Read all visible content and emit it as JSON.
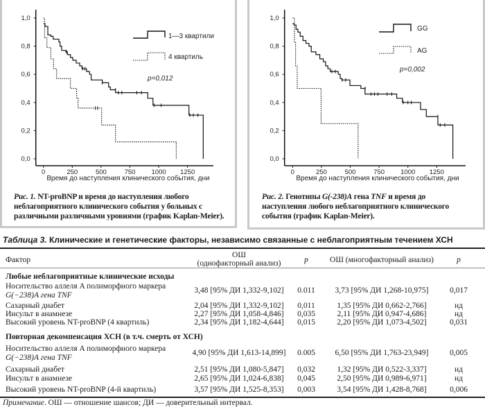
{
  "chart_data": [
    {
      "type": "line",
      "subtype": "kaplan-meier",
      "xlabel": "Время до наступления клинического события, дни",
      "xticks": [
        "0",
        "250",
        "500",
        "750",
        "1000",
        "1250"
      ],
      "xtick_values": [
        0,
        250,
        500,
        750,
        1000,
        1250
      ],
      "yticks": [
        "0,0",
        "0,2",
        "0,4",
        "0,6",
        "0,8",
        "1,0"
      ],
      "ytick_values": [
        0,
        0.2,
        0.4,
        0.6,
        0.8,
        1.0
      ],
      "xlim": [
        0,
        1450
      ],
      "ylim": [
        0,
        1.0
      ],
      "grid": false,
      "legend_position": "top-right",
      "annotation": "p=0,012",
      "series": [
        {
          "name": "1—3 квартили",
          "style": "solid",
          "start": 0.96,
          "steps": [
            [
              14,
              0.94
            ],
            [
              38,
              0.88
            ],
            [
              64,
              0.87
            ],
            [
              84,
              0.85
            ],
            [
              134,
              0.83
            ],
            [
              144,
              0.8
            ],
            [
              158,
              0.77
            ],
            [
              194,
              0.76
            ],
            [
              208,
              0.74
            ],
            [
              234,
              0.72
            ],
            [
              254,
              0.7
            ],
            [
              284,
              0.68
            ],
            [
              314,
              0.66
            ],
            [
              334,
              0.64
            ],
            [
              374,
              0.62
            ],
            [
              400,
              0.6
            ],
            [
              414,
              0.56
            ],
            [
              510,
              0.54
            ],
            [
              565,
              0.51
            ],
            [
              580,
              0.49
            ],
            [
              625,
              0.47
            ],
            [
              905,
              0.43
            ],
            [
              950,
              0.38
            ],
            [
              1262,
              0.31
            ],
            [
              1386,
              0.0
            ]
          ],
          "censored": [
            [
              200,
              0.76
            ],
            [
              340,
              0.64
            ],
            [
              360,
              0.64
            ],
            [
              510,
              0.54
            ],
            [
              625,
              0.49
            ],
            [
              650,
              0.47
            ],
            [
              680,
              0.47
            ],
            [
              810,
              0.47
            ],
            [
              850,
              0.47
            ],
            [
              960,
              0.38
            ],
            [
              1020,
              0.38
            ],
            [
              1270,
              0.31
            ],
            [
              1300,
              0.31
            ],
            [
              1340,
              0.31
            ]
          ]
        },
        {
          "name": "4 квартиль",
          "style": "dotted",
          "start": 1.0,
          "steps": [
            [
              10,
              0.86
            ],
            [
              30,
              0.79
            ],
            [
              64,
              0.71
            ],
            [
              88,
              0.64
            ],
            [
              114,
              0.57
            ],
            [
              234,
              0.5
            ],
            [
              288,
              0.43
            ],
            [
              300,
              0.36
            ],
            [
              505,
              0.24
            ],
            [
              625,
              0.12
            ],
            [
              1152,
              0.0
            ]
          ],
          "censored": [
            [
              450,
              0.36
            ],
            [
              470,
              0.36
            ]
          ]
        }
      ]
    },
    {
      "type": "line",
      "subtype": "kaplan-meier",
      "xlabel": "Время до наступления клинического события, дни",
      "xticks": [
        "0",
        "250",
        "500",
        "750",
        "1000",
        "1250"
      ],
      "xtick_values": [
        0,
        250,
        500,
        750,
        1000,
        1250
      ],
      "yticks": [
        "0,0",
        "0,2",
        "0,4",
        "0,6",
        "0,8",
        "1,0"
      ],
      "ytick_values": [
        0,
        0.2,
        0.4,
        0.6,
        0.8,
        1.0
      ],
      "xlim": [
        0,
        1450
      ],
      "ylim": [
        0,
        1.0
      ],
      "grid": false,
      "legend_position": "top-right",
      "annotation": "p=0,002",
      "series": [
        {
          "name": "GG",
          "style": "solid",
          "start": 0.96,
          "steps": [
            [
              12,
              0.95
            ],
            [
              30,
              0.92
            ],
            [
              46,
              0.9
            ],
            [
              66,
              0.87
            ],
            [
              90,
              0.84
            ],
            [
              116,
              0.82
            ],
            [
              142,
              0.8
            ],
            [
              162,
              0.76
            ],
            [
              202,
              0.74
            ],
            [
              236,
              0.71
            ],
            [
              266,
              0.69
            ],
            [
              286,
              0.66
            ],
            [
              306,
              0.64
            ],
            [
              326,
              0.62
            ],
            [
              396,
              0.6
            ],
            [
              413,
              0.57
            ],
            [
              427,
              0.56
            ],
            [
              497,
              0.52
            ],
            [
              592,
              0.5
            ],
            [
              628,
              0.46
            ],
            [
              903,
              0.43
            ],
            [
              953,
              0.4
            ],
            [
              1110,
              0.35
            ],
            [
              1160,
              0.3
            ],
            [
              1260,
              0.24
            ],
            [
              1390,
              0.0
            ]
          ],
          "censored": [
            [
              340,
              0.62
            ],
            [
              370,
              0.62
            ],
            [
              430,
              0.56
            ],
            [
              460,
              0.56
            ],
            [
              630,
              0.5
            ],
            [
              680,
              0.46
            ],
            [
              710,
              0.46
            ],
            [
              740,
              0.46
            ],
            [
              820,
              0.46
            ],
            [
              860,
              0.46
            ],
            [
              960,
              0.4
            ],
            [
              1000,
              0.4
            ],
            [
              1030,
              0.4
            ],
            [
              1260,
              0.3
            ],
            [
              1280,
              0.24
            ],
            [
              1320,
              0.24
            ]
          ]
        },
        {
          "name": "AG",
          "style": "dotted",
          "start": 1.0,
          "steps": [
            [
              16,
              0.83
            ],
            [
              26,
              0.66
            ],
            [
              40,
              0.5
            ],
            [
              247,
              0.25
            ],
            [
              568,
              0.0
            ]
          ],
          "censored": []
        }
      ]
    }
  ],
  "captions": {
    "fig1_label": "Рис. 1.",
    "fig1_text": "NT-proBNP и время до наступления любого неблагоприятного клинического события у больных с различными различными уровнями (график Kaplan-Meier).",
    "fig2_label": "Рис. 2.",
    "fig2_text_a": "Генотипы",
    "fig2_gene": "G(-238)A",
    "fig2_text_b": "гена",
    "fig2_tnf": "TNF",
    "fig2_text_c": "и время до наступления любого неблагоприятного клинического события (график Kaplan-Meier)."
  },
  "table": {
    "title_label": "Таблица 3.",
    "title_text": "Клинические и генетические факторы, независимо связанные с неблагоприятным течением ХСН",
    "headers": {
      "factor": "Фактор",
      "or_uni_1": "ОШ",
      "or_uni_2": "(однофакторный анализ)",
      "p1": "p",
      "or_multi": "ОШ (многофакторный анализ)",
      "p2": "p"
    },
    "sections": [
      {
        "title": "Любые неблагоприятные клинические исходы",
        "rows": [
          {
            "factor_1": "Носительство аллеля A полиморфного маркера",
            "factor_2": "G(−238)A гена TNF",
            "or_uni": "3,48 [95% ДИ 1,332-9,102]",
            "p_uni": "0.011",
            "or_multi": "3,73 [95% ДИ 1,268-10,975]",
            "p_multi": "0,017"
          },
          {
            "factor_1": "Сахарный диабет",
            "or_uni": "2,04 [95% ДИ 1,332-9,102]",
            "p_uni": "0,011",
            "or_multi": "1,35 [95% ДИ 0,662-2,766]",
            "p_multi": "нд"
          },
          {
            "factor_1": "Инсульт в анамнезе",
            "or_uni": "2,27 [95% ДИ 1,058-4,846]",
            "p_uni": "0,035",
            "or_multi": "2,11 [95% ДИ 0,947-4,686]",
            "p_multi": "нд"
          },
          {
            "factor_1": "Высокий уровень NT-proBNP (4 квартиль)",
            "or_uni": "2,34 [95% ДИ 1,182-4,644]",
            "p_uni": "0,015",
            "or_multi": "2,20 [95% ДИ 1,073-4,502]",
            "p_multi": "0,031"
          }
        ]
      },
      {
        "title": "Повторная декомпенсация ХСН (в т.ч. смерть от ХСН)",
        "rows": [
          {
            "factor_1": "Носительство аллеля A полиморфного маркера",
            "factor_2": "G(−238)A гена TNF",
            "or_uni": "4,90 [95% ДИ 1,613-14,899]",
            "p_uni": "0.005",
            "or_multi": "6,50 [95% ДИ 1,763-23,949]",
            "p_multi": "0,005"
          },
          {
            "factor_1": "Сахарный диабет",
            "or_uni": "2,51 [95% ДИ 1,080-5,847]",
            "p_uni": "0,032",
            "or_multi": "1,32 [95% ДИ 0,522-3,337]",
            "p_multi": "нд"
          },
          {
            "factor_1": "Инсульт в анамнезе",
            "or_uni": "2,65 [95% ДИ 1,024-6,838]",
            "p_uni": "0,045",
            "or_multi": "2,50 [95% ДИ 0,989-6,971]",
            "p_multi": "нд"
          },
          {
            "factor_1": "Высокий уровень NT-proBNP (4-й квартиль)",
            "or_uni": "3,57 [95% ДИ 1,525-8,353]",
            "p_uni": "0,003",
            "or_multi": "3,54 [95% ДИ 1,428-8,768]",
            "p_multi": "0,006"
          }
        ]
      }
    ],
    "note_label": "Примечание",
    "note_text": ". ОШ — отношение шансов; ДИ — доверительный интервал."
  }
}
